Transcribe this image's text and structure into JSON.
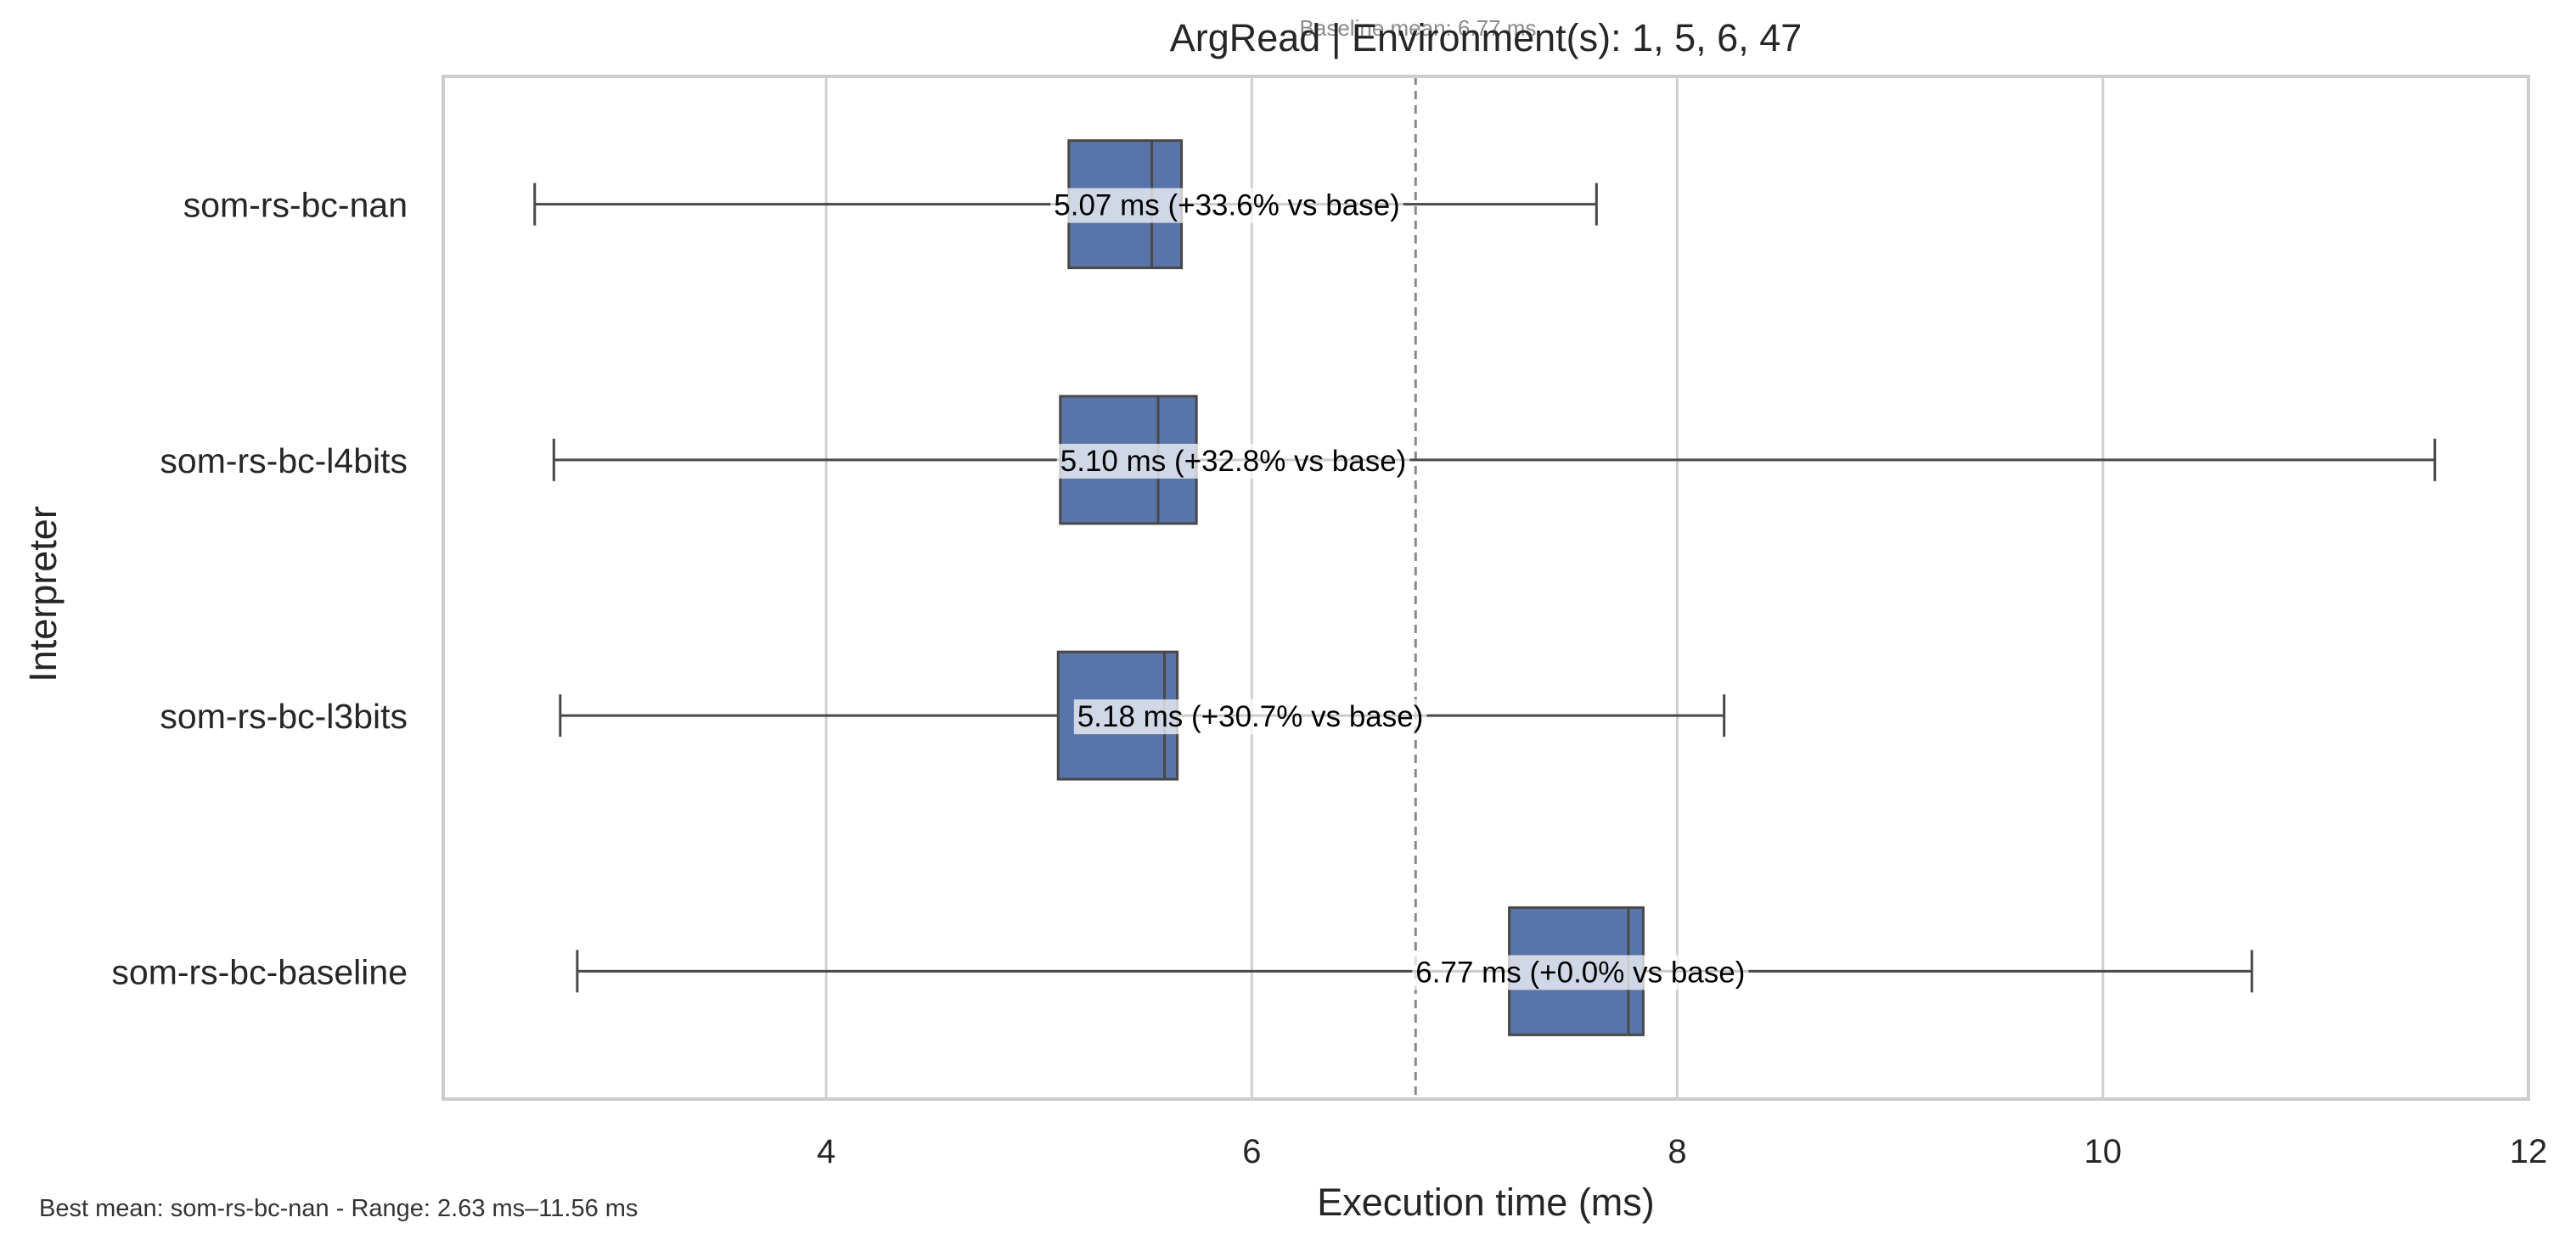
{
  "chart_data": {
    "type": "box",
    "orientation": "horizontal",
    "title": "ArgRead | Environment(s): 1, 5, 6, 47",
    "xlabel": "Execution time (ms)",
    "ylabel": "Interpreter",
    "xlim": [
      2.2,
      12
    ],
    "xticks": [
      4,
      6,
      8,
      10,
      12
    ],
    "grid": "vertical",
    "box_color": "#5874a8",
    "baseline": {
      "value": 6.77,
      "label": "Baseline mean: 6.77 ms"
    },
    "categories": [
      "som-rs-bc-nan",
      "som-rs-bc-l4bits",
      "som-rs-bc-l3bits",
      "som-rs-bc-baseline"
    ],
    "series": [
      {
        "whisker_low": 2.63,
        "q1": 5.14,
        "median": 5.53,
        "q3": 5.67,
        "whisker_high": 7.62,
        "mean": 5.07,
        "label": "5.07 ms  (+33.6% vs base)"
      },
      {
        "whisker_low": 2.72,
        "q1": 5.1,
        "median": 5.56,
        "q3": 5.74,
        "whisker_high": 11.56,
        "mean": 5.1,
        "label": "5.10 ms  (+32.8% vs base)"
      },
      {
        "whisker_low": 2.75,
        "q1": 5.09,
        "median": 5.59,
        "q3": 5.65,
        "whisker_high": 8.22,
        "mean": 5.18,
        "label": "5.18 ms  (+30.7% vs base)"
      },
      {
        "whisker_low": 2.83,
        "q1": 7.21,
        "median": 7.77,
        "q3": 7.84,
        "whisker_high": 10.7,
        "mean": 6.77,
        "label": "6.77 ms  (+0.0% vs base)"
      }
    ],
    "footnote": "Best mean: som-rs-bc-nan - Range: 2.63 ms–11.56 ms"
  }
}
